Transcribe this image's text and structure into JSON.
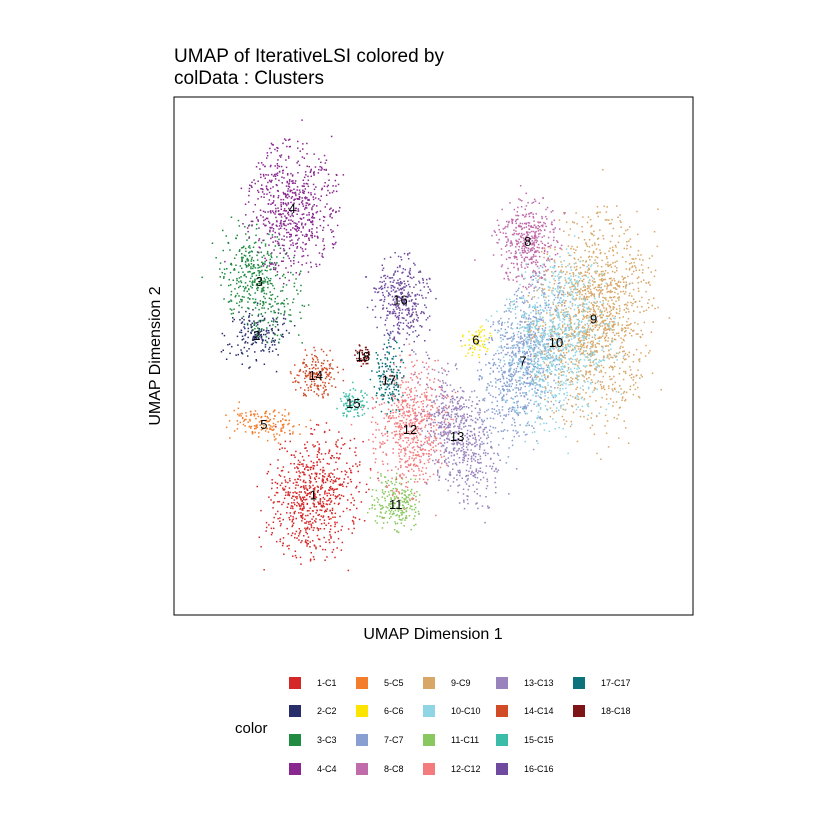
{
  "chart_data": {
    "type": "scatter",
    "title_line1": "UMAP of IterativeLSI  colored by",
    "title_line2": "colData :  Clusters",
    "xlabel": "UMAP Dimension 1",
    "ylabel": "UMAP Dimension 2",
    "grid": false,
    "legend_placement": "bottom",
    "legend_title": "color",
    "clusters": [
      {
        "id": "1",
        "legend": "1-C1",
        "color": "#D62728",
        "cx": 0.245,
        "cy": 0.205,
        "n": 700
      },
      {
        "id": "2",
        "legend": "2-C2",
        "color": "#272E6A",
        "cx": 0.125,
        "cy": 0.545,
        "n": 180
      },
      {
        "id": "3",
        "legend": "3-C3",
        "color": "#208A42",
        "cx": 0.13,
        "cy": 0.66,
        "n": 420
      },
      {
        "id": "4",
        "legend": "4-C4",
        "color": "#89288F",
        "cx": 0.2,
        "cy": 0.815,
        "n": 650
      },
      {
        "id": "5",
        "legend": "5-C5",
        "color": "#F47D2B",
        "cx": 0.14,
        "cy": 0.355,
        "n": 150
      },
      {
        "id": "6",
        "legend": "6-C6",
        "color": "#FEE500",
        "cx": 0.59,
        "cy": 0.535,
        "n": 60
      },
      {
        "id": "7",
        "legend": "7-C7",
        "color": "#8A9FD1",
        "cx": 0.69,
        "cy": 0.49,
        "n": 800
      },
      {
        "id": "8",
        "legend": "8-C8",
        "color": "#C06CAB",
        "cx": 0.7,
        "cy": 0.745,
        "n": 420
      },
      {
        "id": "9",
        "legend": "9-C9",
        "color": "#D8A767",
        "cx": 0.84,
        "cy": 0.58,
        "n": 1300
      },
      {
        "id": "10",
        "legend": "10-C10",
        "color": "#90D5E4",
        "cx": 0.76,
        "cy": 0.53,
        "n": 900
      },
      {
        "id": "11",
        "legend": "11-C11",
        "color": "#89C75F",
        "cx": 0.42,
        "cy": 0.185,
        "n": 220
      },
      {
        "id": "12",
        "legend": "12-C12",
        "color": "#F37B7D",
        "cx": 0.45,
        "cy": 0.345,
        "n": 600
      },
      {
        "id": "13",
        "legend": "13-C13",
        "color": "#9983BD",
        "cx": 0.55,
        "cy": 0.33,
        "n": 600
      },
      {
        "id": "14",
        "legend": "14-C14",
        "color": "#D24B27",
        "cx": 0.25,
        "cy": 0.46,
        "n": 180
      },
      {
        "id": "15",
        "legend": "15-C15",
        "color": "#3BBCA8",
        "cx": 0.33,
        "cy": 0.4,
        "n": 90
      },
      {
        "id": "16",
        "legend": "16-C16",
        "color": "#6E4B9E",
        "cx": 0.43,
        "cy": 0.62,
        "n": 350
      },
      {
        "id": "17",
        "legend": "17-C17",
        "color": "#0C727C",
        "cx": 0.405,
        "cy": 0.45,
        "n": 150
      },
      {
        "id": "18",
        "legend": "18-C18",
        "color": "#7E1416",
        "cx": 0.35,
        "cy": 0.5,
        "n": 50
      }
    ]
  }
}
